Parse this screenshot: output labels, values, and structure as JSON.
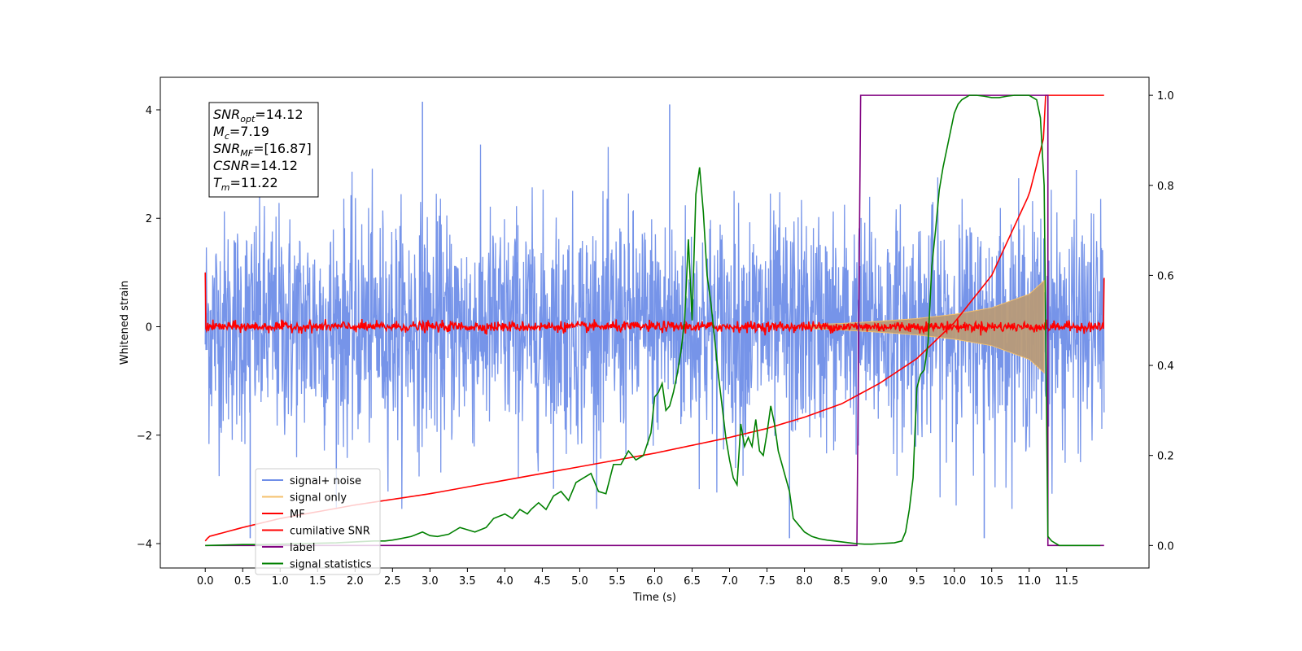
{
  "chart_data": {
    "type": "line",
    "xlabel": "Time (s)",
    "ylabel": "Whitened strain",
    "xlim": [
      -0.6,
      12.6
    ],
    "ylim": [
      -4.45,
      4.6
    ],
    "y2lim": [
      -0.05,
      1.04
    ],
    "x_ticks": [
      0.0,
      0.5,
      1.0,
      1.5,
      2.0,
      2.5,
      3.0,
      3.5,
      4.0,
      4.5,
      5.0,
      5.5,
      6.0,
      6.5,
      7.0,
      7.5,
      8.0,
      8.5,
      9.0,
      9.5,
      10.0,
      10.5,
      11.0,
      11.5
    ],
    "x_tick_labels": [
      "0.0",
      "0.5",
      "1.0",
      "1.5",
      "2.0",
      "2.5",
      "3.0",
      "3.5",
      "4.0",
      "4.5",
      "5.0",
      "5.5",
      "6.0",
      "6.5",
      "7.0",
      "7.5",
      "8.0",
      "8.5",
      "9.0",
      "9.5",
      "10.0",
      "10.5",
      "11.0",
      "11.5"
    ],
    "y_ticks": [
      -4,
      -2,
      0,
      2,
      4
    ],
    "y_tick_labels": [
      "−4",
      "−2",
      "0",
      "2",
      "4"
    ],
    "y2_ticks": [
      0.0,
      0.2,
      0.4,
      0.6,
      0.8,
      1.0
    ],
    "y2_tick_labels": [
      "0.0",
      "0.2",
      "0.4",
      "0.6",
      "0.8",
      "1.0"
    ],
    "grid": false,
    "legend_position": "lower-left",
    "annotation": {
      "lines": [
        {
          "symbol": "SNR",
          "sub": "opt",
          "value": "=14.12"
        },
        {
          "symbol": "M",
          "sub": "c",
          "value": "=7.19"
        },
        {
          "symbol": "SNR",
          "sub": "MF",
          "value": "=[16.87]"
        },
        {
          "symbol": "CSNR",
          "sub": "",
          "value": "=14.12"
        },
        {
          "symbol": "T",
          "sub": "m",
          "value": "=11.22"
        }
      ]
    },
    "series": [
      {
        "name": "signal+ noise",
        "color": "#6f8ee8",
        "axis": "left",
        "kind": "noise_band",
        "x_range": [
          0.0,
          12.0
        ],
        "envelope": {
          "typical": 1.0,
          "peaks": 2.8
        },
        "spikes": [
          {
            "x": 2.9,
            "y": 4.15
          },
          {
            "x": 6.2,
            "y": 4.1
          },
          {
            "x": 0.6,
            "y": -3.9
          },
          {
            "x": 7.8,
            "y": -3.9
          },
          {
            "x": 10.4,
            "y": -3.9
          }
        ]
      },
      {
        "name": "signal only",
        "color": "#f5c16c",
        "axis": "left",
        "kind": "chirp_envelope",
        "x": [
          8.0,
          8.5,
          9.0,
          9.5,
          10.0,
          10.5,
          11.0,
          11.2
        ],
        "amplitude": [
          0.03,
          0.06,
          0.1,
          0.15,
          0.23,
          0.35,
          0.6,
          0.85
        ]
      },
      {
        "name": "MF",
        "color": "#ff0000",
        "axis": "left",
        "kind": "noisy_flat",
        "x_range": [
          0.0,
          12.0
        ],
        "level": 0.0,
        "noise": 0.08,
        "start_value": 1.0,
        "end_value": 0.9
      },
      {
        "name": "cumilative SNR",
        "color": "#ff0000",
        "axis": "right",
        "x": [
          0.0,
          0.05,
          0.5,
          1.0,
          2.0,
          3.0,
          4.0,
          5.0,
          6.0,
          7.0,
          7.5,
          8.0,
          8.5,
          9.0,
          9.5,
          10.0,
          10.5,
          11.0,
          11.2,
          11.22,
          12.0
        ],
        "values": [
          0.01,
          0.02,
          0.04,
          0.06,
          0.09,
          0.115,
          0.145,
          0.175,
          0.205,
          0.24,
          0.26,
          0.285,
          0.315,
          0.36,
          0.415,
          0.495,
          0.6,
          0.78,
          0.91,
          1.0,
          1.0
        ]
      },
      {
        "name": "label",
        "color": "#800080",
        "axis": "right",
        "x": [
          0.0,
          8.7,
          8.7,
          8.75,
          11.2,
          11.2,
          11.25,
          11.25,
          12.0
        ],
        "values": [
          0.0,
          0.0,
          0.0,
          1.0,
          1.0,
          1.0,
          1.0,
          0.0,
          0.0
        ]
      },
      {
        "name": "signal statistics",
        "color": "#008000",
        "axis": "right",
        "x": [
          0.0,
          0.25,
          0.5,
          0.75,
          1.0,
          1.25,
          1.5,
          1.75,
          2.0,
          2.25,
          2.4,
          2.5,
          2.6,
          2.75,
          2.9,
          3.0,
          3.1,
          3.25,
          3.4,
          3.5,
          3.6,
          3.75,
          3.85,
          4.0,
          4.1,
          4.2,
          4.3,
          4.35,
          4.45,
          4.55,
          4.65,
          4.75,
          4.85,
          4.95,
          5.05,
          5.15,
          5.25,
          5.35,
          5.45,
          5.55,
          5.65,
          5.75,
          5.85,
          5.95,
          6.0,
          6.05,
          6.1,
          6.15,
          6.2,
          6.25,
          6.3,
          6.35,
          6.4,
          6.45,
          6.5,
          6.55,
          6.6,
          6.65,
          6.7,
          6.75,
          6.8,
          6.85,
          6.9,
          6.95,
          7.0,
          7.05,
          7.1,
          7.15,
          7.2,
          7.25,
          7.3,
          7.35,
          7.4,
          7.45,
          7.5,
          7.55,
          7.6,
          7.65,
          7.7,
          7.75,
          7.8,
          7.85,
          7.9,
          8.0,
          8.1,
          8.2,
          8.3,
          8.4,
          8.5,
          8.6,
          8.7,
          8.8,
          8.9,
          9.0,
          9.1,
          9.2,
          9.3,
          9.35,
          9.4,
          9.45,
          9.5,
          9.55,
          9.6,
          9.65,
          9.7,
          9.75,
          9.8,
          9.85,
          9.9,
          9.95,
          10.0,
          10.05,
          10.1,
          10.2,
          10.3,
          10.4,
          10.5,
          10.6,
          10.7,
          10.8,
          10.9,
          11.0,
          11.1,
          11.15,
          11.2,
          11.25,
          11.3,
          11.4,
          11.5,
          11.6,
          11.8,
          11.95
        ],
        "values": [
          0.0,
          0.001,
          0.002,
          0.002,
          0.003,
          0.004,
          0.005,
          0.006,
          0.008,
          0.01,
          0.01,
          0.012,
          0.015,
          0.02,
          0.03,
          0.022,
          0.02,
          0.025,
          0.04,
          0.035,
          0.03,
          0.04,
          0.06,
          0.07,
          0.06,
          0.08,
          0.07,
          0.08,
          0.095,
          0.08,
          0.11,
          0.12,
          0.1,
          0.14,
          0.15,
          0.16,
          0.12,
          0.115,
          0.18,
          0.18,
          0.21,
          0.19,
          0.2,
          0.25,
          0.33,
          0.34,
          0.36,
          0.3,
          0.31,
          0.34,
          0.38,
          0.43,
          0.5,
          0.68,
          0.5,
          0.78,
          0.84,
          0.74,
          0.6,
          0.54,
          0.46,
          0.38,
          0.31,
          0.24,
          0.19,
          0.15,
          0.135,
          0.27,
          0.22,
          0.24,
          0.22,
          0.28,
          0.21,
          0.2,
          0.25,
          0.31,
          0.27,
          0.21,
          0.18,
          0.15,
          0.12,
          0.06,
          0.05,
          0.03,
          0.02,
          0.015,
          0.012,
          0.01,
          0.008,
          0.006,
          0.004,
          0.003,
          0.003,
          0.004,
          0.005,
          0.006,
          0.01,
          0.03,
          0.08,
          0.15,
          0.35,
          0.38,
          0.39,
          0.45,
          0.62,
          0.7,
          0.79,
          0.84,
          0.88,
          0.92,
          0.96,
          0.98,
          0.99,
          1.0,
          1.0,
          0.998,
          0.995,
          0.995,
          0.998,
          1.0,
          1.0,
          1.0,
          0.99,
          0.95,
          0.8,
          0.02,
          0.01,
          0.0,
          0.0,
          0.0,
          0.0,
          0.0
        ]
      }
    ]
  }
}
